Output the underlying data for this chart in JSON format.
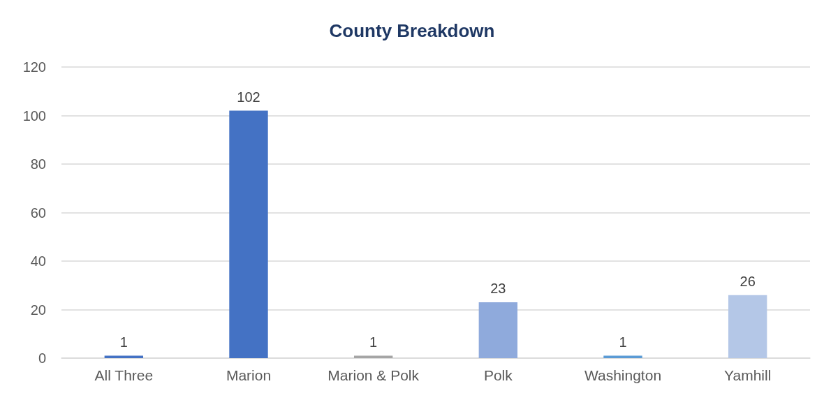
{
  "chart_data": {
    "type": "bar",
    "title": "County Breakdown",
    "categories": [
      "All Three",
      "Marion",
      "Marion & Polk",
      "Polk",
      "Washington",
      "Yamhill"
    ],
    "values": [
      1,
      102,
      1,
      23,
      1,
      26
    ],
    "colors": [
      "#4472c4",
      "#4472c4",
      "#a5a5a5",
      "#8faadc",
      "#5b9bd5",
      "#b4c7e7"
    ],
    "ylim": [
      0,
      120
    ],
    "yticks": [
      0,
      20,
      40,
      60,
      80,
      100,
      120
    ],
    "grid": "y",
    "data_labels": true
  }
}
